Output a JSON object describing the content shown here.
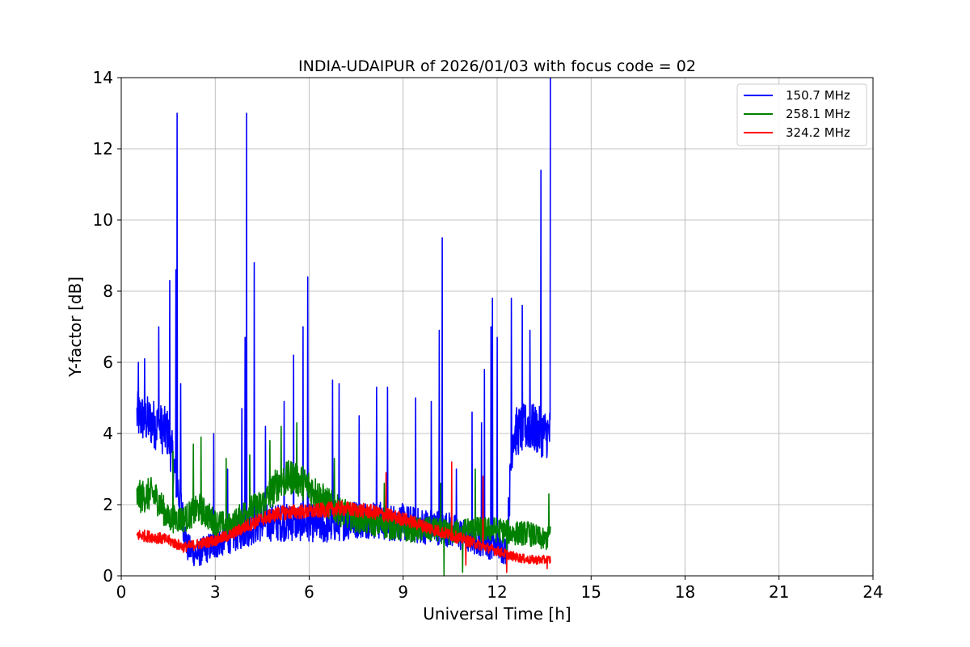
{
  "chart_data": {
    "type": "line",
    "title": "INDIA-UDAIPUR of 2026/01/03 with focus code = 02",
    "xlabel": "Universal Time [h]",
    "ylabel": "Y-factor [dB]",
    "xlim": [
      0,
      24
    ],
    "ylim": [
      0,
      14
    ],
    "xticks": [
      0,
      3,
      6,
      9,
      12,
      15,
      18,
      21,
      24
    ],
    "yticks": [
      0,
      2,
      4,
      6,
      8,
      10,
      12,
      14
    ],
    "grid": true,
    "legend_position": "top-right",
    "series": [
      {
        "name": "150.7 MHz",
        "color": "#0000ff",
        "noise": 0.7,
        "x": [
          0.5,
          1.0,
          1.5,
          1.9,
          2.1,
          2.4,
          3.0,
          3.5,
          4.0,
          4.5,
          5.0,
          5.5,
          6.0,
          6.5,
          7.0,
          7.5,
          8.0,
          8.5,
          9.0,
          9.5,
          10.0,
          10.5,
          11.0,
          11.5,
          12.0,
          12.3,
          12.5,
          13.0,
          13.5,
          13.7
        ],
        "y": [
          4.5,
          4.3,
          4.0,
          2.0,
          0.8,
          0.6,
          0.9,
          1.1,
          1.3,
          1.5,
          1.5,
          1.5,
          1.5,
          1.4,
          1.5,
          1.6,
          1.6,
          1.5,
          1.5,
          1.4,
          1.4,
          1.3,
          1.1,
          1.0,
          0.8,
          0.7,
          4.0,
          4.2,
          4.0,
          4.0
        ],
        "spikes": [
          {
            "x": 0.55,
            "y": 6.0
          },
          {
            "x": 0.75,
            "y": 6.1
          },
          {
            "x": 1.2,
            "y": 7.0
          },
          {
            "x": 1.55,
            "y": 8.3
          },
          {
            "x": 1.78,
            "y": 13.0
          },
          {
            "x": 1.75,
            "y": 8.6
          },
          {
            "x": 1.9,
            "y": 5.4
          },
          {
            "x": 2.95,
            "y": 4.0
          },
          {
            "x": 3.4,
            "y": 3.0
          },
          {
            "x": 3.85,
            "y": 4.7
          },
          {
            "x": 3.95,
            "y": 6.7
          },
          {
            "x": 4.0,
            "y": 13.0
          },
          {
            "x": 4.25,
            "y": 8.8
          },
          {
            "x": 4.6,
            "y": 4.2
          },
          {
            "x": 5.2,
            "y": 4.9
          },
          {
            "x": 5.5,
            "y": 6.2
          },
          {
            "x": 5.8,
            "y": 7.0
          },
          {
            "x": 5.95,
            "y": 8.4
          },
          {
            "x": 6.75,
            "y": 5.5
          },
          {
            "x": 6.95,
            "y": 5.4
          },
          {
            "x": 7.6,
            "y": 4.5
          },
          {
            "x": 8.15,
            "y": 5.3
          },
          {
            "x": 8.5,
            "y": 5.3
          },
          {
            "x": 9.4,
            "y": 5.0
          },
          {
            "x": 9.9,
            "y": 4.9
          },
          {
            "x": 10.15,
            "y": 6.9
          },
          {
            "x": 10.25,
            "y": 9.5
          },
          {
            "x": 10.7,
            "y": 3.0
          },
          {
            "x": 11.2,
            "y": 4.6
          },
          {
            "x": 11.5,
            "y": 4.3
          },
          {
            "x": 11.6,
            "y": 5.8
          },
          {
            "x": 11.8,
            "y": 7.0
          },
          {
            "x": 11.85,
            "y": 7.8
          },
          {
            "x": 12.0,
            "y": 6.7
          },
          {
            "x": 12.45,
            "y": 7.8
          },
          {
            "x": 12.8,
            "y": 7.6
          },
          {
            "x": 13.05,
            "y": 6.9
          },
          {
            "x": 13.4,
            "y": 11.4
          },
          {
            "x": 13.7,
            "y": 14.0
          }
        ]
      },
      {
        "name": "258.1 MHz",
        "color": "#008000",
        "noise": 0.5,
        "x": [
          0.5,
          1.0,
          1.2,
          1.5,
          2.0,
          2.5,
          3.0,
          3.5,
          4.0,
          4.5,
          5.0,
          5.5,
          6.0,
          6.5,
          7.0,
          7.5,
          8.0,
          8.5,
          9.0,
          9.5,
          10.0,
          10.5,
          11.0,
          11.5,
          12.0,
          12.5,
          13.0,
          13.5,
          13.7
        ],
        "y": [
          2.2,
          2.3,
          2.1,
          1.6,
          1.6,
          1.9,
          1.5,
          1.4,
          1.8,
          2.0,
          2.6,
          2.8,
          2.5,
          2.1,
          1.8,
          1.6,
          1.5,
          1.4,
          1.3,
          1.3,
          1.3,
          1.2,
          1.3,
          1.3,
          1.3,
          1.2,
          1.2,
          1.0,
          1.1
        ],
        "spikes": [
          {
            "x": 1.65,
            "y": 3.5
          },
          {
            "x": 2.3,
            "y": 3.7
          },
          {
            "x": 2.55,
            "y": 3.9
          },
          {
            "x": 3.35,
            "y": 3.3
          },
          {
            "x": 4.1,
            "y": 3.4
          },
          {
            "x": 4.75,
            "y": 3.8
          },
          {
            "x": 5.1,
            "y": 4.2
          },
          {
            "x": 5.6,
            "y": 4.3
          },
          {
            "x": 6.8,
            "y": 3.3
          },
          {
            "x": 8.4,
            "y": 2.6
          },
          {
            "x": 10.2,
            "y": 2.6
          },
          {
            "x": 10.3,
            "y": 0.0
          },
          {
            "x": 10.9,
            "y": 0.1
          },
          {
            "x": 11.3,
            "y": 3.0
          },
          {
            "x": 12.3,
            "y": 0.1
          },
          {
            "x": 13.65,
            "y": 2.3
          }
        ]
      },
      {
        "name": "324.2 MHz",
        "color": "#ff0000",
        "noise": 0.25,
        "x": [
          0.5,
          1.0,
          1.5,
          2.0,
          2.5,
          3.0,
          3.5,
          4.0,
          4.5,
          5.0,
          5.5,
          6.0,
          6.5,
          7.0,
          7.5,
          8.0,
          8.5,
          9.0,
          9.5,
          10.0,
          10.5,
          11.0,
          11.5,
          12.0,
          12.5,
          13.0,
          13.5,
          13.7
        ],
        "y": [
          1.15,
          1.1,
          1.0,
          0.8,
          0.9,
          1.0,
          1.15,
          1.4,
          1.6,
          1.75,
          1.8,
          1.8,
          1.85,
          1.9,
          1.85,
          1.8,
          1.7,
          1.6,
          1.45,
          1.3,
          1.15,
          1.0,
          0.85,
          0.7,
          0.55,
          0.45,
          0.45,
          0.45
        ],
        "spikes": [
          {
            "x": 8.45,
            "y": 2.9
          },
          {
            "x": 10.55,
            "y": 3.2
          },
          {
            "x": 11.0,
            "y": 0.3
          },
          {
            "x": 11.55,
            "y": 2.8
          },
          {
            "x": 12.3,
            "y": 0.1
          },
          {
            "x": 13.6,
            "y": 0.2
          }
        ]
      }
    ]
  }
}
